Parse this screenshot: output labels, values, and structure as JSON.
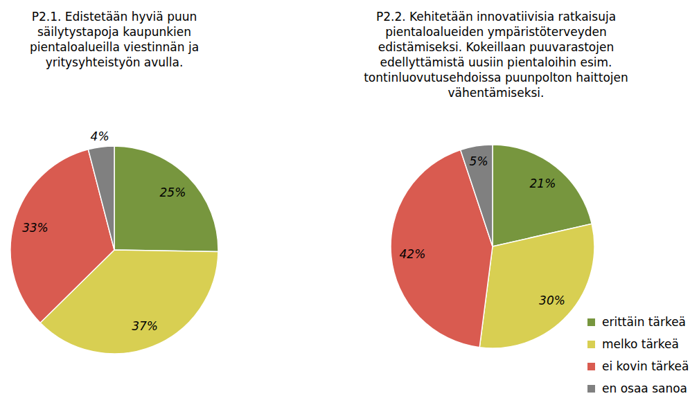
{
  "chart_data": [
    {
      "type": "pie",
      "title": "P2.1. Edistetään hyviä puun säilytystapoja kaupunkien pientaloalueilla viestinnän ja yritysyhteistyön avulla.",
      "values": [
        25,
        37,
        33,
        4
      ],
      "value_labels": [
        "25%",
        "37%",
        "33%",
        "4%"
      ],
      "colors": [
        "#77963e",
        "#d8cf52",
        "#d95b50",
        "#808080"
      ],
      "data_labels": true
    },
    {
      "type": "pie",
      "title": "P2.2. Kehitetään innovatiivisia ratkaisuja pientaloalueiden ympäristöterveyden edistämiseksi. Kokeillaan puuvarastojen edellyttämistä uusiin pientaloihin esim. tontinluovutusehdoissa puunpolton haittojen vähentämiseksi.",
      "categories": [
        "erittäin tärkeä",
        "melko tärkeä",
        "ei kovin tärkeä",
        "en osaa sanoa"
      ],
      "values": [
        21,
        30,
        42,
        5
      ],
      "value_labels": [
        "21%",
        "30%",
        "42%",
        "5%"
      ],
      "colors": [
        "#77963e",
        "#d8cf52",
        "#d95b50",
        "#808080"
      ],
      "data_labels": true,
      "legend": "lower right"
    }
  ]
}
